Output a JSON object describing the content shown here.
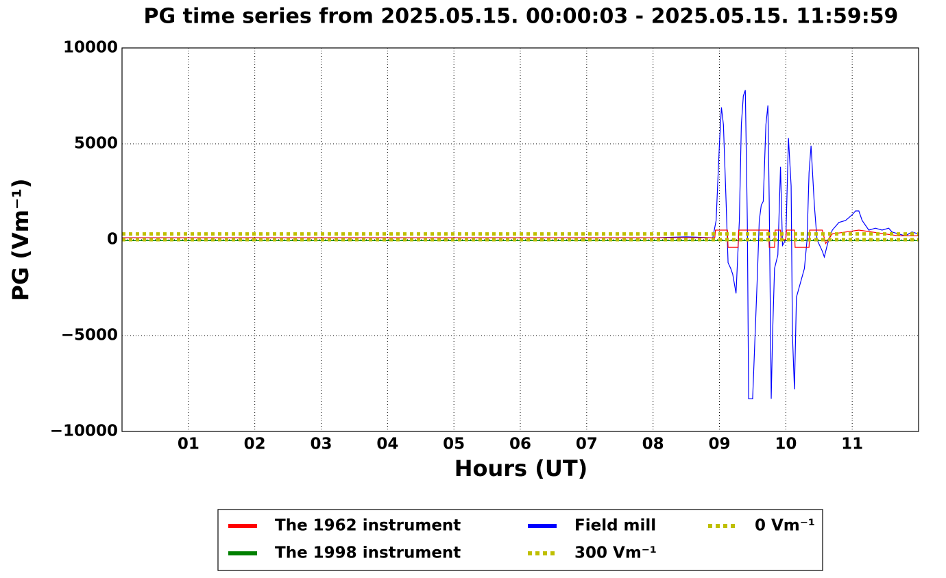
{
  "chart_data": {
    "type": "line",
    "title": "PG time series from 2025.05.15. 00:00:03 - 2025.05.15. 11:59:59",
    "x_label": "Hours (UT)",
    "y_label": "PG (Vm⁻¹)",
    "xlim": [
      0,
      12
    ],
    "xticks": [
      {
        "value": 1,
        "label": "01"
      },
      {
        "value": 2,
        "label": "02"
      },
      {
        "value": 3,
        "label": "03"
      },
      {
        "value": 4,
        "label": "04"
      },
      {
        "value": 5,
        "label": "05"
      },
      {
        "value": 6,
        "label": "06"
      },
      {
        "value": 7,
        "label": "07"
      },
      {
        "value": 8,
        "label": "08"
      },
      {
        "value": 9,
        "label": "09"
      },
      {
        "value": 10,
        "label": "10"
      },
      {
        "value": 11,
        "label": "11"
      }
    ],
    "ylim": [
      -10000,
      10000
    ],
    "yticks": [
      {
        "value": -10000,
        "label": "−10000"
      },
      {
        "value": -5000,
        "label": "−5000"
      },
      0,
      5000,
      10000
    ],
    "grid": true,
    "legend": "below",
    "series": [
      {
        "name": "The 1962 instrument",
        "color": "#ff0000",
        "style": "solid",
        "x": [
          0,
          8.93,
          8.94,
          9.12,
          9.13,
          9.28,
          9.29,
          9.74,
          9.75,
          9.83,
          9.84,
          9.92,
          9.93,
          10.0,
          10.01,
          10.13,
          10.14,
          10.35,
          10.36,
          10.55,
          10.6,
          10.7,
          10.9,
          11.1,
          11.3,
          11.5,
          11.7,
          12
        ],
        "values": [
          100,
          100,
          500,
          500,
          -400,
          -400,
          500,
          500,
          -400,
          -400,
          500,
          500,
          0,
          0,
          500,
          500,
          -400,
          -400,
          500,
          500,
          -200,
          300,
          400,
          500,
          400,
          300,
          200,
          200
        ]
      },
      {
        "name": "The 1998 instrument",
        "color": "#008000",
        "style": "solid",
        "x": [
          0,
          12
        ],
        "values": [
          -50,
          -50
        ]
      },
      {
        "name": "Field mill",
        "color": "#0000ff",
        "style": "solid",
        "x": [
          0,
          8.0,
          8.5,
          8.9,
          8.95,
          9.0,
          9.03,
          9.06,
          9.1,
          9.13,
          9.17,
          9.2,
          9.25,
          9.3,
          9.33,
          9.36,
          9.39,
          9.42,
          9.44,
          9.5,
          9.52,
          9.57,
          9.6,
          9.63,
          9.66,
          9.7,
          9.73,
          9.75,
          9.78,
          9.8,
          9.83,
          9.88,
          9.92,
          9.95,
          10.0,
          10.04,
          10.08,
          10.1,
          10.13,
          10.16,
          10.2,
          10.28,
          10.32,
          10.35,
          10.38,
          10.43,
          10.47,
          10.55,
          10.58,
          10.63,
          10.7,
          10.8,
          10.9,
          11.0,
          11.05,
          11.1,
          11.15,
          11.25,
          11.35,
          11.45,
          11.55,
          11.6,
          11.7,
          11.8,
          11.9,
          12
        ],
        "values": [
          100,
          100,
          150,
          100,
          1000,
          5000,
          6900,
          6000,
          2000,
          -1200,
          -1500,
          -1800,
          -2800,
          1000,
          6000,
          7500,
          7800,
          1000,
          -8300,
          -8300,
          -6500,
          -2000,
          1000,
          1800,
          2000,
          6000,
          7000,
          2000,
          -8300,
          -5000,
          -1500,
          -800,
          3800,
          -300,
          0,
          5300,
          2800,
          -5000,
          -7800,
          -3000,
          -2500,
          -1500,
          0,
          3500,
          4900,
          1800,
          0,
          -600,
          -900,
          -200,
          500,
          900,
          1000,
          1300,
          1500,
          1500,
          1000,
          500,
          600,
          500,
          600,
          400,
          300,
          200,
          400,
          300
        ]
      },
      {
        "name": "300 Vm⁻¹",
        "color": "#bfbf00",
        "style": "dotted",
        "x": [
          0,
          12
        ],
        "values": [
          300,
          300
        ]
      },
      {
        "name": "0 Vm⁻¹",
        "color": "#bfbf00",
        "style": "dotted",
        "x": [
          0,
          12
        ],
        "values": [
          0,
          0
        ]
      }
    ]
  }
}
